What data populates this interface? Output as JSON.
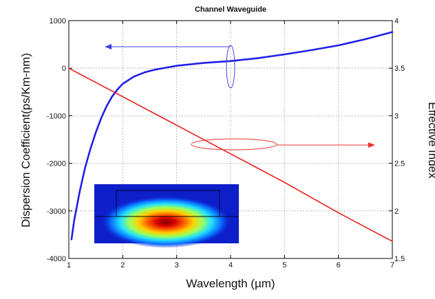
{
  "chart_data": {
    "type": "line",
    "title": "Channel Waveguide",
    "xlabel": "Wavelength (µm)",
    "ylabel_left": "Dispersion Coefficient(ps/Km-nm)",
    "ylabel_right": "Effective Index",
    "xlim": [
      1,
      7
    ],
    "ylim_left": [
      -4000,
      1000
    ],
    "ylim_right": [
      1.5,
      4
    ],
    "x_ticks": [
      "1",
      "2",
      "3",
      "4",
      "5",
      "6",
      "7"
    ],
    "y_left_ticks": [
      "-4000",
      "-3000",
      "-2000",
      "-1000",
      "0",
      "1000"
    ],
    "y_right_ticks": [
      "1.5",
      "2",
      "2.5",
      "3",
      "3.5",
      "4"
    ],
    "grid": true,
    "series": [
      {
        "axis": "left",
        "color": "#1f1fe6",
        "x": [
          1.05,
          1.1,
          1.2,
          1.3,
          1.4,
          1.5,
          1.6,
          1.7,
          1.8,
          1.9,
          2.0,
          2.2,
          2.4,
          2.6,
          2.8,
          3.0,
          3.5,
          4.0,
          4.5,
          5.0,
          5.5,
          6.0,
          6.5,
          7.0
        ],
        "values": [
          -3600,
          -3200,
          -2600,
          -2100,
          -1700,
          -1350,
          -1050,
          -800,
          -600,
          -450,
          -330,
          -180,
          -90,
          -30,
          10,
          50,
          110,
          150,
          210,
          290,
          380,
          480,
          610,
          760
        ]
      },
      {
        "axis": "right",
        "color": "#ee1c1c",
        "x": [
          1,
          2,
          3,
          4,
          5,
          6,
          7
        ],
        "values": [
          3.5,
          3.2,
          2.9,
          2.6,
          2.3,
          1.98,
          1.68
        ]
      }
    ]
  },
  "annotations": {
    "blue_arrow_target": "left-axis",
    "red_arrow_target": "right-axis"
  },
  "inset": {
    "description_icon": "mode-profile-heatmap-icon"
  }
}
